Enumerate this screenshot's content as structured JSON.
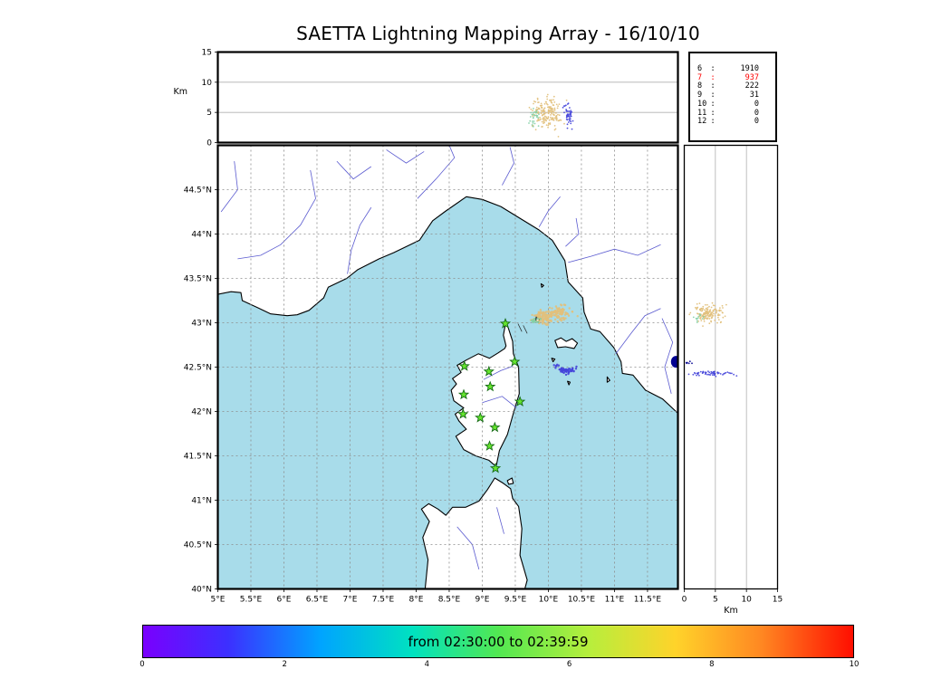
{
  "colors": {
    "sea": "#a8dcea",
    "land": "#ffffff",
    "coast": "#000000",
    "river": "#5b5bd0",
    "grid": "#8c8c8c",
    "panel_grid": "#b0b0b0",
    "tan": "#e2c07c",
    "teal": "#83d0a6",
    "blue": "#4444da",
    "navy": "#000090",
    "star_fill": "#66e62e",
    "star_edge": "#156b15",
    "stat_red": "#ff0000"
  },
  "chart_data": {
    "type": "scatter",
    "title": "SAETTA Lightning Mapping Array - 16/10/10",
    "stats_sep": ":",
    "source_counts": [
      {
        "bin": "6",
        "value": "1910",
        "red": false
      },
      {
        "bin": "7",
        "value": "937",
        "red": true
      },
      {
        "bin": "8",
        "value": "222",
        "red": false
      },
      {
        "bin": "9",
        "value": "31",
        "red": false
      },
      {
        "bin": "10",
        "value": "0",
        "red": false
      },
      {
        "bin": "11",
        "value": "0",
        "red": false
      },
      {
        "bin": "12",
        "value": "0",
        "red": false
      }
    ],
    "colorbar": {
      "label": "from 02:30:00 to 02:39:59",
      "ticks": [
        {
          "f": 0,
          "t": "0"
        },
        {
          "f": 0.2,
          "t": "2"
        },
        {
          "f": 0.4,
          "t": "4"
        },
        {
          "f": 0.6,
          "t": "6"
        },
        {
          "f": 0.8,
          "t": "8"
        },
        {
          "f": 1,
          "t": "10"
        }
      ],
      "gradient": [
        [
          "#7a00fe",
          0
        ],
        [
          "#3c30ff",
          12
        ],
        [
          "#00a4ff",
          25
        ],
        [
          "#00e2c0",
          38
        ],
        [
          "#52e852",
          50
        ],
        [
          "#b8ee3c",
          63
        ],
        [
          "#ffd32a",
          75
        ],
        [
          "#ff8822",
          87
        ],
        [
          "#ff0e00",
          100
        ]
      ]
    },
    "axes": {
      "km_left_label": "Km",
      "km_bottom_label": "Km",
      "top_y": [
        {
          "v": 0,
          "t": "0"
        },
        {
          "v": 5,
          "t": "5"
        },
        {
          "v": 10,
          "t": "10"
        },
        {
          "v": 15,
          "t": "15"
        }
      ],
      "right_x": [
        {
          "v": 0,
          "t": "0"
        },
        {
          "v": 5,
          "t": "5"
        },
        {
          "v": 10,
          "t": "10"
        },
        {
          "v": 15,
          "t": "15"
        }
      ],
      "map_x": [
        {
          "v": 5,
          "t": "5°E"
        },
        {
          "v": 5.5,
          "t": "5.5°E"
        },
        {
          "v": 6,
          "t": "6°E"
        },
        {
          "v": 6.5,
          "t": "6.5°E"
        },
        {
          "v": 7,
          "t": "7°E"
        },
        {
          "v": 7.5,
          "t": "7.5°E"
        },
        {
          "v": 8,
          "t": "8°E"
        },
        {
          "v": 8.5,
          "t": "8.5°E"
        },
        {
          "v": 9,
          "t": "9°E"
        },
        {
          "v": 9.5,
          "t": "9.5°E"
        },
        {
          "v": 10,
          "t": "10°E"
        },
        {
          "v": 10.5,
          "t": "10.5°E"
        },
        {
          "v": 11,
          "t": "11°E"
        },
        {
          "v": 11.5,
          "t": "11.5°E"
        }
      ],
      "map_y": [
        {
          "v": 40,
          "t": "40°N"
        },
        {
          "v": 40.5,
          "t": "40.5°N"
        },
        {
          "v": 41,
          "t": "41°N"
        },
        {
          "v": 41.5,
          "t": "41.5°N"
        },
        {
          "v": 42,
          "t": "42°N"
        },
        {
          "v": 42.5,
          "t": "42.5°N"
        },
        {
          "v": 43,
          "t": "43°N"
        },
        {
          "v": 43.5,
          "t": "43.5°N"
        },
        {
          "v": 44,
          "t": "44°N"
        },
        {
          "v": 44.5,
          "t": "44.5°N"
        }
      ]
    },
    "panels": [
      {
        "id": "alt-lon",
        "ylabel": "Km",
        "xlim": [
          5,
          11.96
        ],
        "ylim": [
          0,
          15
        ],
        "grid_y": [
          5,
          10
        ],
        "dot_r": 0.9,
        "clusters": [
          {
            "cx": 9.95,
            "cy": 4.7,
            "sx": 0.1,
            "sy": 1.25,
            "n": 150,
            "color": "tan"
          },
          {
            "cx": 10.1,
            "cy": 5.1,
            "sx": 0.05,
            "sy": 0.9,
            "n": 35,
            "color": "tan"
          },
          {
            "cx": 9.79,
            "cy": 4.0,
            "sx": 0.045,
            "sy": 0.9,
            "n": 30,
            "color": "teal"
          },
          {
            "cx": 10.3,
            "cy": 4.6,
            "sx": 0.035,
            "sy": 1.1,
            "n": 45,
            "color": "blue"
          }
        ]
      },
      {
        "id": "map",
        "xlim": [
          5,
          11.96
        ],
        "ylim": [
          40,
          45
        ],
        "dot_r": 1.2,
        "clusters": [
          {
            "cx": 9.93,
            "cy": 43.06,
            "sx": 0.075,
            "sy": 0.035,
            "n": 120,
            "color": "tan"
          },
          {
            "cx": 10.17,
            "cy": 43.11,
            "sx": 0.085,
            "sy": 0.04,
            "n": 90,
            "color": "tan"
          },
          {
            "cx": 9.8,
            "cy": 43.03,
            "sx": 0.03,
            "sy": 0.02,
            "n": 12,
            "color": "teal"
          },
          {
            "cx": 10.28,
            "cy": 42.46,
            "sx": 0.06,
            "sy": 0.016,
            "n": 48,
            "color": "blue"
          },
          {
            "cx": 10.11,
            "cy": 42.52,
            "sx": 0.02,
            "sy": 0.01,
            "n": 6,
            "color": "blue"
          }
        ],
        "blobs": [
          {
            "cx": 11.93,
            "cy": 42.56,
            "rx": 5.5,
            "ry": 6.5,
            "color": "navy"
          }
        ]
      },
      {
        "id": "alt-lat",
        "xlabel": "Km",
        "xlim": [
          0,
          15
        ],
        "ylim": [
          40,
          45
        ],
        "grid_x": [
          5,
          10
        ],
        "dot_r": 0.9,
        "clusters": [
          {
            "cx": 3.9,
            "cy": 43.1,
            "sx": 1.2,
            "sy": 0.05,
            "n": 150,
            "color": "tan"
          },
          {
            "cx": 2.3,
            "cy": 43.04,
            "sx": 0.5,
            "sy": 0.03,
            "n": 12,
            "color": "teal"
          },
          {
            "cx": 4.3,
            "cy": 42.43,
            "sx": 1.7,
            "sy": 0.013,
            "n": 55,
            "color": "blue"
          },
          {
            "cx": 0.6,
            "cy": 42.56,
            "sx": 0.3,
            "sy": 0.012,
            "n": 6,
            "color": "navy"
          }
        ]
      }
    ],
    "stations_lonlat": [
      [
        9.35,
        42.99
      ],
      [
        8.73,
        42.51
      ],
      [
        9.1,
        42.45
      ],
      [
        9.49,
        42.56
      ],
      [
        8.72,
        42.19
      ],
      [
        9.12,
        42.28
      ],
      [
        9.57,
        42.11
      ],
      [
        8.71,
        41.97
      ],
      [
        8.97,
        41.93
      ],
      [
        9.19,
        41.82
      ],
      [
        9.11,
        41.61
      ],
      [
        9.2,
        41.36
      ]
    ],
    "map_geometry": {
      "mainland": [
        [
          5.0,
          43.32
        ],
        [
          5.2,
          43.35
        ],
        [
          5.35,
          43.34
        ],
        [
          5.37,
          43.25
        ],
        [
          5.6,
          43.17
        ],
        [
          5.8,
          43.1
        ],
        [
          6.05,
          43.08
        ],
        [
          6.2,
          43.09
        ],
        [
          6.38,
          43.14
        ],
        [
          6.6,
          43.28
        ],
        [
          6.67,
          43.4
        ],
        [
          6.95,
          43.5
        ],
        [
          7.12,
          43.6
        ],
        [
          7.44,
          43.72
        ],
        [
          7.66,
          43.79
        ],
        [
          8.05,
          43.93
        ],
        [
          8.25,
          44.15
        ],
        [
          8.45,
          44.26
        ],
        [
          8.76,
          44.42
        ],
        [
          9.0,
          44.39
        ],
        [
          9.28,
          44.31
        ],
        [
          9.52,
          44.2
        ],
        [
          9.85,
          44.05
        ],
        [
          10.06,
          43.93
        ],
        [
          10.25,
          43.7
        ],
        [
          10.3,
          43.46
        ],
        [
          10.52,
          43.28
        ],
        [
          10.54,
          43.12
        ],
        [
          10.64,
          42.93
        ],
        [
          10.78,
          42.9
        ],
        [
          10.99,
          42.72
        ],
        [
          11.1,
          42.56
        ],
        [
          11.12,
          42.43
        ],
        [
          11.28,
          42.41
        ],
        [
          11.47,
          42.24
        ],
        [
          11.73,
          42.14
        ],
        [
          11.96,
          41.98
        ],
        [
          11.96,
          45.04
        ],
        [
          5.0,
          45.04
        ]
      ],
      "corsica": [
        [
          9.36,
          43.02
        ],
        [
          9.46,
          42.79
        ],
        [
          9.47,
          42.65
        ],
        [
          9.55,
          42.5
        ],
        [
          9.56,
          42.2
        ],
        [
          9.47,
          41.98
        ],
        [
          9.38,
          41.74
        ],
        [
          9.26,
          41.56
        ],
        [
          9.21,
          41.38
        ],
        [
          9.1,
          41.45
        ],
        [
          8.9,
          41.5
        ],
        [
          8.72,
          41.57
        ],
        [
          8.6,
          41.72
        ],
        [
          8.76,
          41.8
        ],
        [
          8.65,
          41.89
        ],
        [
          8.59,
          41.97
        ],
        [
          8.72,
          42.04
        ],
        [
          8.57,
          42.12
        ],
        [
          8.53,
          42.24
        ],
        [
          8.61,
          42.31
        ],
        [
          8.55,
          42.37
        ],
        [
          8.68,
          42.44
        ],
        [
          8.62,
          42.52
        ],
        [
          8.76,
          42.58
        ],
        [
          8.94,
          42.65
        ],
        [
          9.11,
          42.6
        ],
        [
          9.24,
          42.66
        ],
        [
          9.34,
          42.71
        ],
        [
          9.36,
          42.74
        ],
        [
          9.32,
          42.86
        ]
      ],
      "sardinia": [
        [
          8.13,
          39.96
        ],
        [
          8.18,
          40.33
        ],
        [
          8.1,
          40.58
        ],
        [
          8.2,
          40.76
        ],
        [
          8.08,
          40.9
        ],
        [
          8.19,
          40.96
        ],
        [
          8.33,
          40.9
        ],
        [
          8.45,
          40.83
        ],
        [
          8.55,
          40.92
        ],
        [
          8.75,
          40.92
        ],
        [
          8.95,
          40.99
        ],
        [
          9.08,
          41.12
        ],
        [
          9.19,
          41.25
        ],
        [
          9.32,
          41.19
        ],
        [
          9.43,
          41.13
        ],
        [
          9.46,
          41.02
        ],
        [
          9.55,
          40.93
        ],
        [
          9.6,
          40.68
        ],
        [
          9.57,
          40.38
        ],
        [
          9.68,
          40.1
        ],
        [
          9.63,
          39.96
        ]
      ],
      "islands": [
        [
          [
            10.1,
            42.8
          ],
          [
            10.19,
            42.83
          ],
          [
            10.27,
            42.79
          ],
          [
            10.36,
            42.82
          ],
          [
            10.44,
            42.77
          ],
          [
            10.39,
            42.71
          ],
          [
            10.26,
            42.73
          ],
          [
            10.14,
            42.72
          ]
        ],
        [
          [
            9.82,
            43.07
          ],
          [
            9.87,
            43.05
          ],
          [
            9.85,
            43.0
          ],
          [
            9.81,
            43.03
          ]
        ],
        [
          [
            9.89,
            43.44
          ],
          [
            9.93,
            43.42
          ],
          [
            9.9,
            43.4
          ]
        ],
        [
          [
            10.05,
            42.6
          ],
          [
            10.1,
            42.59
          ],
          [
            10.07,
            42.56
          ]
        ],
        [
          [
            10.29,
            42.34
          ],
          [
            10.33,
            42.33
          ],
          [
            10.31,
            42.3
          ]
        ],
        [
          [
            10.89,
            42.39
          ],
          [
            10.93,
            42.35
          ],
          [
            10.89,
            42.33
          ]
        ],
        [
          [
            9.38,
            41.22
          ],
          [
            9.45,
            41.25
          ],
          [
            9.47,
            41.19
          ],
          [
            9.4,
            41.18
          ]
        ]
      ],
      "rivers": [
        [
          [
            5.3,
            43.72
          ],
          [
            5.65,
            43.76
          ],
          [
            5.95,
            43.88
          ],
          [
            6.25,
            44.1
          ],
          [
            6.48,
            44.4
          ],
          [
            6.4,
            44.72
          ]
        ],
        [
          [
            6.96,
            43.55
          ],
          [
            7.02,
            43.82
          ],
          [
            7.15,
            44.1
          ],
          [
            7.32,
            44.3
          ]
        ],
        [
          [
            5.05,
            44.25
          ],
          [
            5.3,
            44.5
          ],
          [
            5.25,
            44.82
          ]
        ],
        [
          [
            8.02,
            44.4
          ],
          [
            8.3,
            44.62
          ],
          [
            8.58,
            44.86
          ],
          [
            8.5,
            45.0
          ]
        ],
        [
          [
            7.55,
            44.95
          ],
          [
            7.85,
            44.8
          ],
          [
            8.12,
            44.93
          ]
        ],
        [
          [
            6.8,
            44.82
          ],
          [
            7.05,
            44.62
          ],
          [
            7.32,
            44.76
          ]
        ],
        [
          [
            9.3,
            44.55
          ],
          [
            9.48,
            44.8
          ],
          [
            9.42,
            44.98
          ]
        ],
        [
          [
            9.86,
            44.08
          ],
          [
            10.0,
            44.26
          ],
          [
            10.18,
            44.42
          ]
        ],
        [
          [
            10.3,
            43.68
          ],
          [
            10.65,
            43.75
          ],
          [
            11.0,
            43.83
          ],
          [
            11.35,
            43.76
          ],
          [
            11.7,
            43.88
          ]
        ],
        [
          [
            10.26,
            43.86
          ],
          [
            10.46,
            44.0
          ],
          [
            10.42,
            44.18
          ]
        ],
        [
          [
            11.02,
            42.65
          ],
          [
            11.25,
            42.88
          ],
          [
            11.46,
            43.08
          ],
          [
            11.7,
            43.16
          ]
        ],
        [
          [
            11.86,
            42.2
          ],
          [
            11.76,
            42.5
          ],
          [
            11.88,
            42.78
          ],
          [
            11.72,
            43.05
          ]
        ],
        [
          [
            9.02,
            42.36
          ],
          [
            9.28,
            42.46
          ],
          [
            9.46,
            42.51
          ]
        ],
        [
          [
            9.0,
            42.1
          ],
          [
            9.3,
            42.17
          ],
          [
            9.52,
            42.04
          ]
        ],
        [
          [
            8.62,
            40.7
          ],
          [
            8.85,
            40.5
          ],
          [
            8.95,
            40.22
          ]
        ],
        [
          [
            9.22,
            40.92
          ],
          [
            9.33,
            40.62
          ]
        ]
      ],
      "sea_marks": [
        [
          [
            9.54,
            42.99
          ],
          [
            9.6,
            42.9
          ]
        ],
        [
          [
            9.62,
            42.97
          ],
          [
            9.68,
            42.88
          ]
        ]
      ]
    }
  }
}
